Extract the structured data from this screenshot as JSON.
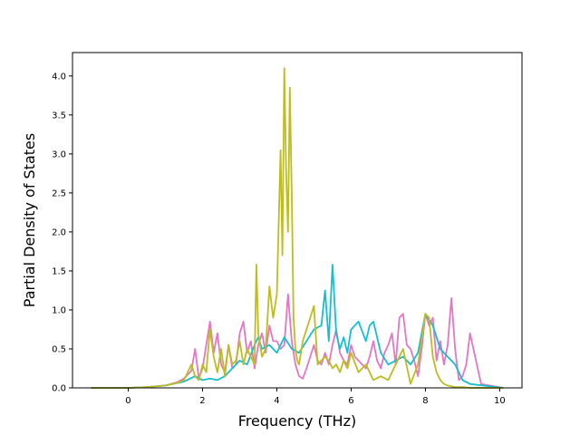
{
  "chart_data": {
    "type": "line",
    "title": "",
    "xlabel": "Frequency (THz)",
    "ylabel": "Partial Density of States",
    "xlim": [
      -1.5,
      10.6
    ],
    "ylim": [
      0,
      4.3
    ],
    "xticks": [
      0,
      2,
      4,
      6,
      8,
      10
    ],
    "xtick_labels": [
      "0",
      "2",
      "4",
      "6",
      "8",
      "10"
    ],
    "yticks": [
      0.0,
      0.5,
      1.0,
      1.5,
      2.0,
      2.5,
      3.0,
      3.5,
      4.0
    ],
    "ytick_labels": [
      "0.0",
      "0.5",
      "1.0",
      "1.5",
      "2.0",
      "2.5",
      "3.0",
      "3.5",
      "4.0"
    ],
    "grid": false,
    "legend": "none",
    "series": [
      {
        "color": "#e377c2",
        "x": [
          -1.0,
          0.0,
          0.5,
          1.0,
          1.3,
          1.5,
          1.7,
          1.8,
          1.9,
          2.0,
          2.1,
          2.2,
          2.3,
          2.4,
          2.5,
          2.6,
          2.7,
          2.8,
          2.9,
          3.0,
          3.1,
          3.2,
          3.3,
          3.4,
          3.5,
          3.6,
          3.7,
          3.8,
          3.9,
          4.0,
          4.1,
          4.2,
          4.3,
          4.4,
          4.5,
          4.6,
          4.7,
          4.8,
          4.9,
          5.0,
          5.1,
          5.2,
          5.3,
          5.4,
          5.5,
          5.6,
          5.7,
          5.8,
          5.9,
          6.0,
          6.1,
          6.2,
          6.3,
          6.4,
          6.5,
          6.6,
          6.7,
          6.8,
          6.9,
          7.0,
          7.1,
          7.2,
          7.3,
          7.4,
          7.5,
          7.6,
          7.7,
          7.8,
          7.9,
          8.0,
          8.1,
          8.2,
          8.3,
          8.4,
          8.5,
          8.6,
          8.7,
          8.8,
          8.9,
          9.0,
          9.1,
          9.2,
          9.5,
          10.1
        ],
        "y": [
          0,
          0,
          0.01,
          0.03,
          0.07,
          0.12,
          0.22,
          0.5,
          0.12,
          0.25,
          0.55,
          0.85,
          0.45,
          0.7,
          0.3,
          0.2,
          0.55,
          0.25,
          0.3,
          0.7,
          0.85,
          0.45,
          0.6,
          0.25,
          0.55,
          0.7,
          0.45,
          0.8,
          0.6,
          0.6,
          0.5,
          0.55,
          1.2,
          0.6,
          0.3,
          0.15,
          0.12,
          0.25,
          0.4,
          0.55,
          0.35,
          0.3,
          0.45,
          0.3,
          0.55,
          0.75,
          0.45,
          0.35,
          0.3,
          0.55,
          0.4,
          0.35,
          0.3,
          0.25,
          0.4,
          0.6,
          0.35,
          0.25,
          0.45,
          0.55,
          0.7,
          0.3,
          0.9,
          0.95,
          0.55,
          0.5,
          0.35,
          0.15,
          0.5,
          0.95,
          0.8,
          0.9,
          0.35,
          0.6,
          0.3,
          0.55,
          1.15,
          0.5,
          0.1,
          0.15,
          0.3,
          0.7,
          0.05,
          0
        ]
      },
      {
        "color": "#17becf",
        "x": [
          -1.0,
          0.0,
          0.5,
          1.0,
          1.5,
          1.8,
          2.0,
          2.2,
          2.4,
          2.6,
          2.8,
          3.0,
          3.2,
          3.4,
          3.5,
          3.6,
          3.8,
          4.0,
          4.2,
          4.4,
          4.6,
          4.8,
          5.0,
          5.2,
          5.3,
          5.4,
          5.5,
          5.6,
          5.7,
          5.8,
          5.9,
          6.0,
          6.2,
          6.4,
          6.5,
          6.6,
          6.8,
          7.0,
          7.2,
          7.4,
          7.6,
          7.8,
          8.0,
          8.2,
          8.4,
          8.6,
          8.8,
          9.0,
          9.2,
          10.1
        ],
        "y": [
          0,
          0,
          0.01,
          0.03,
          0.08,
          0.15,
          0.1,
          0.12,
          0.1,
          0.15,
          0.25,
          0.35,
          0.3,
          0.55,
          0.65,
          0.5,
          0.55,
          0.45,
          0.65,
          0.5,
          0.45,
          0.6,
          0.75,
          0.8,
          1.25,
          0.6,
          1.58,
          0.7,
          0.5,
          0.65,
          0.45,
          0.75,
          0.85,
          0.6,
          0.8,
          0.85,
          0.45,
          0.3,
          0.35,
          0.4,
          0.3,
          0.45,
          0.95,
          0.8,
          0.5,
          0.4,
          0.3,
          0.1,
          0.05,
          0
        ]
      },
      {
        "color": "#bcbd22",
        "x": [
          -1.0,
          0.0,
          0.5,
          1.0,
          1.3,
          1.5,
          1.6,
          1.7,
          1.8,
          1.9,
          2.0,
          2.1,
          2.2,
          2.3,
          2.4,
          2.5,
          2.6,
          2.7,
          2.8,
          2.9,
          3.0,
          3.1,
          3.2,
          3.3,
          3.4,
          3.45,
          3.5,
          3.6,
          3.7,
          3.8,
          3.9,
          4.0,
          4.1,
          4.15,
          4.2,
          4.25,
          4.3,
          4.35,
          4.4,
          4.45,
          4.5,
          4.55,
          4.6,
          4.7,
          4.8,
          4.9,
          5.0,
          5.1,
          5.2,
          5.3,
          5.4,
          5.5,
          5.6,
          5.7,
          5.8,
          5.9,
          6.0,
          6.2,
          6.4,
          6.6,
          6.8,
          7.0,
          7.2,
          7.4,
          7.6,
          7.8,
          8.0,
          8.1,
          8.2,
          8.3,
          8.4,
          8.5,
          8.6,
          8.7,
          8.8,
          9.0,
          9.2,
          10.1
        ],
        "y": [
          0,
          0,
          0.01,
          0.03,
          0.06,
          0.1,
          0.2,
          0.3,
          0.15,
          0.1,
          0.3,
          0.2,
          0.75,
          0.4,
          0.2,
          0.5,
          0.15,
          0.55,
          0.3,
          0.35,
          0.6,
          0.3,
          0.5,
          0.4,
          0.3,
          1.58,
          0.7,
          0.4,
          0.5,
          1.3,
          0.9,
          1.2,
          3.05,
          1.7,
          4.1,
          2.8,
          2.0,
          3.85,
          2.5,
          0.9,
          0.5,
          0.35,
          0.3,
          0.6,
          0.75,
          0.9,
          1.05,
          0.3,
          0.35,
          0.4,
          0.35,
          0.25,
          0.3,
          0.2,
          0.35,
          0.25,
          0.45,
          0.2,
          0.3,
          0.1,
          0.15,
          0.1,
          0.3,
          0.5,
          0.05,
          0.3,
          0.95,
          0.9,
          0.4,
          0.2,
          0.1,
          0.05,
          0.03,
          0.02,
          0.01,
          0.01,
          0,
          0
        ]
      }
    ]
  }
}
